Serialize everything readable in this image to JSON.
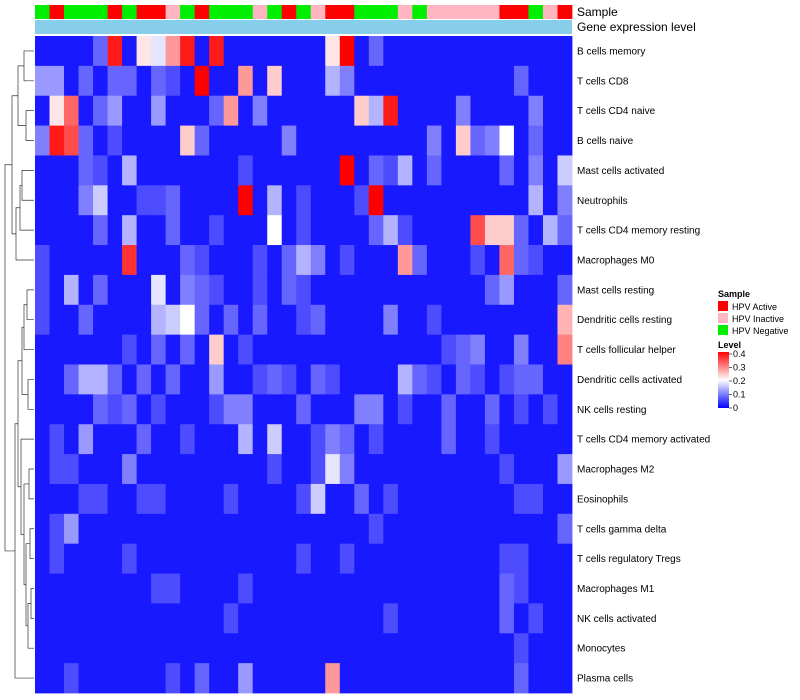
{
  "chart_data": {
    "type": "heatmap",
    "title": "",
    "annotation_tracks": [
      "Sample",
      "Gene expression level"
    ],
    "rows": [
      "B cells memory",
      "T cells CD8",
      "T cells CD4 naive",
      "B cells naive",
      "Mast cells activated",
      "Neutrophils",
      "T cells CD4 memory resting",
      "Macrophages M0",
      "Mast cells resting",
      "Dendritic cells resting",
      "T cells follicular helper",
      "Dendritic cells activated",
      "NK cells resting",
      "T cells CD4 memory activated",
      "Macrophages M2",
      "Eosinophils",
      "T cells gamma delta",
      "T cells regulatory  Tregs",
      "Macrophages M1",
      "NK cells activated",
      "Monocytes",
      "Plasma cells"
    ],
    "sample_groups": [
      "Negative",
      "Active",
      "Negative",
      "Negative",
      "Negative",
      "Active",
      "Negative",
      "Active",
      "Active",
      "Inactive",
      "Negative",
      "Active",
      "Negative",
      "Negative",
      "Negative",
      "Inactive",
      "Negative",
      "Active",
      "Negative",
      "Inactive",
      "Active",
      "Active",
      "Negative",
      "Negative",
      "Negative",
      "Inactive",
      "Negative",
      "Inactive",
      "Inactive",
      "Inactive",
      "Inactive",
      "Inactive",
      "Active",
      "Active",
      "Negative",
      "Inactive",
      "Active"
    ],
    "values": [
      [
        0.02,
        0.02,
        0.02,
        0.02,
        0.08,
        0.38,
        0.02,
        0.22,
        0.18,
        0.28,
        0.38,
        0.02,
        0.38,
        0.02,
        0.02,
        0.02,
        0.02,
        0.02,
        0.02,
        0.02,
        0.22,
        0.4,
        0.02,
        0.08,
        0.02,
        0.02,
        0.02,
        0.02,
        0.02,
        0.02,
        0.02,
        0.02,
        0.02,
        0.02,
        0.02,
        0.02,
        0.02
      ],
      [
        0.12,
        0.12,
        0.02,
        0.08,
        0.02,
        0.08,
        0.08,
        0.02,
        0.08,
        0.06,
        0.02,
        0.4,
        0.02,
        0.02,
        0.28,
        0.02,
        0.24,
        0.02,
        0.02,
        0.02,
        0.14,
        0.1,
        0.02,
        0.02,
        0.02,
        0.02,
        0.02,
        0.02,
        0.02,
        0.02,
        0.02,
        0.02,
        0.02,
        0.08,
        0.02,
        0.02,
        0.02
      ],
      [
        0.02,
        0.22,
        0.32,
        0.02,
        0.08,
        0.12,
        0.02,
        0.02,
        0.12,
        0.02,
        0.02,
        0.02,
        0.08,
        0.28,
        0.02,
        0.1,
        0.02,
        0.02,
        0.02,
        0.02,
        0.02,
        0.02,
        0.24,
        0.14,
        0.38,
        0.02,
        0.02,
        0.02,
        0.02,
        0.1,
        0.02,
        0.02,
        0.02,
        0.02,
        0.1,
        0.02,
        0.02
      ],
      [
        0.1,
        0.38,
        0.34,
        0.08,
        0.02,
        0.06,
        0.02,
        0.02,
        0.02,
        0.02,
        0.24,
        0.08,
        0.02,
        0.02,
        0.02,
        0.02,
        0.02,
        0.1,
        0.02,
        0.02,
        0.02,
        0.02,
        0.02,
        0.02,
        0.02,
        0.02,
        0.02,
        0.1,
        0.02,
        0.24,
        0.08,
        0.1,
        0.2,
        0.02,
        0.08,
        0.02,
        0.02
      ],
      [
        0.02,
        0.02,
        0.02,
        0.08,
        0.06,
        0.02,
        0.14,
        0.02,
        0.02,
        0.02,
        0.02,
        0.02,
        0.02,
        0.02,
        0.06,
        0.02,
        0.02,
        0.02,
        0.02,
        0.02,
        0.02,
        0.4,
        0.02,
        0.08,
        0.06,
        0.14,
        0.02,
        0.08,
        0.02,
        0.02,
        0.02,
        0.02,
        0.08,
        0.02,
        0.1,
        0.02,
        0.16
      ],
      [
        0.02,
        0.02,
        0.02,
        0.1,
        0.16,
        0.02,
        0.02,
        0.06,
        0.06,
        0.08,
        0.02,
        0.02,
        0.02,
        0.02,
        0.4,
        0.02,
        0.14,
        0.02,
        0.06,
        0.02,
        0.02,
        0.02,
        0.06,
        0.4,
        0.02,
        0.02,
        0.02,
        0.02,
        0.02,
        0.02,
        0.02,
        0.02,
        0.02,
        0.02,
        0.14,
        0.02,
        0.1
      ],
      [
        0.02,
        0.02,
        0.02,
        0.02,
        0.08,
        0.02,
        0.14,
        0.02,
        0.02,
        0.08,
        0.02,
        0.02,
        0.06,
        0.02,
        0.02,
        0.02,
        0.2,
        0.02,
        0.06,
        0.02,
        0.02,
        0.02,
        0.02,
        0.08,
        0.14,
        0.06,
        0.02,
        0.02,
        0.02,
        0.02,
        0.34,
        0.24,
        0.24,
        0.08,
        0.02,
        0.14,
        0.08
      ],
      [
        0.06,
        0.02,
        0.02,
        0.02,
        0.02,
        0.02,
        0.36,
        0.02,
        0.02,
        0.02,
        0.08,
        0.06,
        0.02,
        0.02,
        0.02,
        0.06,
        0.02,
        0.08,
        0.14,
        0.1,
        0.02,
        0.06,
        0.02,
        0.02,
        0.02,
        0.28,
        0.08,
        0.02,
        0.02,
        0.02,
        0.06,
        0.02,
        0.32,
        0.08,
        0.06,
        0.02,
        0.02
      ],
      [
        0.06,
        0.02,
        0.14,
        0.02,
        0.08,
        0.02,
        0.02,
        0.02,
        0.18,
        0.02,
        0.1,
        0.08,
        0.06,
        0.02,
        0.02,
        0.06,
        0.02,
        0.08,
        0.06,
        0.02,
        0.02,
        0.02,
        0.02,
        0.02,
        0.02,
        0.02,
        0.02,
        0.02,
        0.02,
        0.02,
        0.02,
        0.08,
        0.12,
        0.02,
        0.02,
        0.02,
        0.08
      ],
      [
        0.06,
        0.02,
        0.02,
        0.08,
        0.02,
        0.02,
        0.02,
        0.02,
        0.14,
        0.16,
        0.2,
        0.08,
        0.02,
        0.08,
        0.02,
        0.08,
        0.02,
        0.02,
        0.06,
        0.08,
        0.02,
        0.02,
        0.02,
        0.02,
        0.1,
        0.02,
        0.02,
        0.06,
        0.02,
        0.02,
        0.02,
        0.02,
        0.02,
        0.02,
        0.02,
        0.02,
        0.26
      ],
      [
        0.02,
        0.02,
        0.02,
        0.02,
        0.02,
        0.02,
        0.06,
        0.02,
        0.08,
        0.02,
        0.08,
        0.02,
        0.24,
        0.02,
        0.06,
        0.02,
        0.02,
        0.02,
        0.02,
        0.02,
        0.02,
        0.02,
        0.02,
        0.02,
        0.02,
        0.02,
        0.02,
        0.02,
        0.06,
        0.08,
        0.1,
        0.02,
        0.02,
        0.1,
        0.02,
        0.02,
        0.3
      ],
      [
        0.02,
        0.02,
        0.08,
        0.14,
        0.14,
        0.08,
        0.02,
        0.08,
        0.02,
        0.08,
        0.02,
        0.02,
        0.12,
        0.02,
        0.02,
        0.06,
        0.08,
        0.06,
        0.02,
        0.08,
        0.06,
        0.02,
        0.02,
        0.02,
        0.02,
        0.14,
        0.08,
        0.06,
        0.02,
        0.08,
        0.06,
        0.02,
        0.06,
        0.08,
        0.08,
        0.02,
        0.02
      ],
      [
        0.02,
        0.02,
        0.02,
        0.02,
        0.08,
        0.06,
        0.08,
        0.02,
        0.06,
        0.02,
        0.02,
        0.02,
        0.06,
        0.1,
        0.1,
        0.02,
        0.02,
        0.02,
        0.08,
        0.02,
        0.02,
        0.02,
        0.1,
        0.1,
        0.02,
        0.06,
        0.02,
        0.02,
        0.08,
        0.02,
        0.02,
        0.08,
        0.02,
        0.06,
        0.02,
        0.06,
        0.02
      ],
      [
        0.02,
        0.06,
        0.02,
        0.12,
        0.02,
        0.02,
        0.02,
        0.08,
        0.02,
        0.02,
        0.06,
        0.02,
        0.02,
        0.02,
        0.14,
        0.02,
        0.16,
        0.02,
        0.02,
        0.06,
        0.1,
        0.08,
        0.02,
        0.06,
        0.02,
        0.02,
        0.02,
        0.02,
        0.08,
        0.02,
        0.02,
        0.06,
        0.02,
        0.02,
        0.02,
        0.02,
        0.02
      ],
      [
        0.02,
        0.06,
        0.06,
        0.02,
        0.02,
        0.02,
        0.1,
        0.02,
        0.02,
        0.02,
        0.02,
        0.02,
        0.02,
        0.02,
        0.02,
        0.02,
        0.06,
        0.02,
        0.02,
        0.06,
        0.18,
        0.1,
        0.02,
        0.02,
        0.02,
        0.02,
        0.02,
        0.02,
        0.02,
        0.02,
        0.02,
        0.02,
        0.06,
        0.02,
        0.02,
        0.02,
        0.12
      ],
      [
        0.02,
        0.02,
        0.02,
        0.06,
        0.06,
        0.02,
        0.02,
        0.06,
        0.06,
        0.02,
        0.02,
        0.02,
        0.02,
        0.06,
        0.02,
        0.02,
        0.02,
        0.02,
        0.06,
        0.16,
        0.02,
        0.02,
        0.08,
        0.02,
        0.06,
        0.02,
        0.02,
        0.02,
        0.02,
        0.02,
        0.02,
        0.02,
        0.02,
        0.06,
        0.06,
        0.02,
        0.02
      ],
      [
        0.02,
        0.06,
        0.12,
        0.02,
        0.02,
        0.02,
        0.02,
        0.02,
        0.02,
        0.02,
        0.02,
        0.02,
        0.02,
        0.02,
        0.02,
        0.02,
        0.02,
        0.02,
        0.02,
        0.02,
        0.02,
        0.02,
        0.02,
        0.06,
        0.02,
        0.02,
        0.02,
        0.02,
        0.02,
        0.02,
        0.02,
        0.02,
        0.02,
        0.02,
        0.02,
        0.02,
        0.08
      ],
      [
        0.02,
        0.06,
        0.02,
        0.02,
        0.02,
        0.02,
        0.06,
        0.02,
        0.02,
        0.02,
        0.02,
        0.02,
        0.02,
        0.02,
        0.02,
        0.02,
        0.02,
        0.02,
        0.06,
        0.02,
        0.02,
        0.06,
        0.02,
        0.02,
        0.02,
        0.02,
        0.02,
        0.02,
        0.02,
        0.02,
        0.02,
        0.02,
        0.06,
        0.06,
        0.02,
        0.02,
        0.02
      ],
      [
        0.02,
        0.02,
        0.02,
        0.02,
        0.02,
        0.02,
        0.02,
        0.02,
        0.06,
        0.06,
        0.02,
        0.02,
        0.02,
        0.02,
        0.06,
        0.02,
        0.02,
        0.02,
        0.02,
        0.02,
        0.02,
        0.02,
        0.02,
        0.02,
        0.02,
        0.02,
        0.02,
        0.02,
        0.02,
        0.02,
        0.02,
        0.02,
        0.08,
        0.06,
        0.02,
        0.02,
        0.02
      ],
      [
        0.02,
        0.02,
        0.02,
        0.02,
        0.02,
        0.02,
        0.02,
        0.02,
        0.02,
        0.02,
        0.02,
        0.02,
        0.02,
        0.06,
        0.02,
        0.02,
        0.02,
        0.02,
        0.02,
        0.02,
        0.02,
        0.02,
        0.02,
        0.02,
        0.06,
        0.02,
        0.02,
        0.02,
        0.02,
        0.02,
        0.02,
        0.02,
        0.08,
        0.02,
        0.06,
        0.02,
        0.02
      ],
      [
        0.02,
        0.02,
        0.02,
        0.02,
        0.02,
        0.02,
        0.02,
        0.02,
        0.02,
        0.02,
        0.02,
        0.02,
        0.02,
        0.02,
        0.02,
        0.02,
        0.02,
        0.02,
        0.02,
        0.02,
        0.02,
        0.02,
        0.02,
        0.02,
        0.02,
        0.02,
        0.02,
        0.02,
        0.02,
        0.02,
        0.02,
        0.02,
        0.02,
        0.06,
        0.02,
        0.02,
        0.02
      ],
      [
        0.02,
        0.02,
        0.06,
        0.02,
        0.02,
        0.02,
        0.02,
        0.02,
        0.02,
        0.06,
        0.02,
        0.08,
        0.02,
        0.02,
        0.12,
        0.02,
        0.02,
        0.02,
        0.02,
        0.02,
        0.28,
        0.02,
        0.02,
        0.02,
        0.02,
        0.02,
        0.02,
        0.02,
        0.02,
        0.02,
        0.02,
        0.02,
        0.02,
        0.08,
        0.02,
        0.02,
        0.02
      ]
    ],
    "colorscale": {
      "low": "#0000ff",
      "mid": "#ffffff",
      "high": "#ff0000",
      "range": [
        0,
        0.4
      ],
      "mid_value": 0.2
    },
    "group_colors": {
      "Active": "#ff0000",
      "Inactive": "#ffb6c1",
      "Negative": "#00ee00"
    },
    "expression_track_color": "#87ceeb",
    "legend": {
      "sample_title": "Sample",
      "sample_entries": [
        "HPV Active",
        "HPV Inactive",
        "HPV Negative"
      ],
      "level_title": "Level",
      "level_ticks": [
        "0.4",
        "0.3",
        "0.2",
        "0.1",
        "0"
      ]
    }
  }
}
